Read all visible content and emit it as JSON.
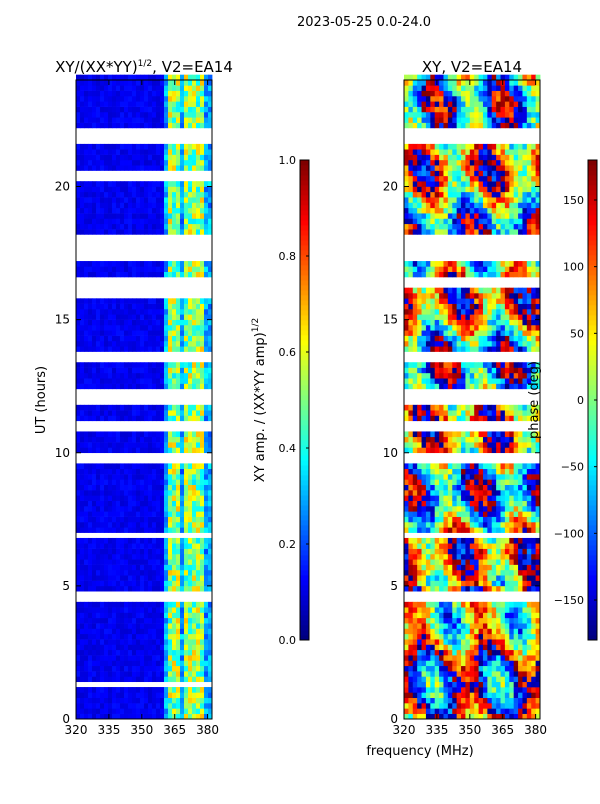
{
  "figure": {
    "suptitle": "2023-05-25 0.0-24.0",
    "xlabel": "frequency (MHz)"
  },
  "colors": {
    "jet": [
      "#00007f",
      "#0000ff",
      "#007fff",
      "#00ffff",
      "#7fff7f",
      "#ffff00",
      "#ff7f00",
      "#ff0000",
      "#7f0000"
    ],
    "gap": "#ffffff",
    "axis": "#000000"
  },
  "chart_data": [
    {
      "type": "heatmap",
      "title_main": "XY/(XX*YY)",
      "title_sup": "1/2",
      "title_tail": ", V2=EA14",
      "ylabel": "UT (hours)",
      "x_ticks": [
        "320",
        "335",
        "350",
        "365",
        "380"
      ],
      "x_tick_values": [
        320,
        335,
        350,
        365,
        380
      ],
      "xlim": [
        320,
        382
      ],
      "y_ticks": [
        "0",
        "5",
        "10",
        "15",
        "20"
      ],
      "y_tick_values": [
        0,
        5,
        10,
        15,
        20
      ],
      "ylim": [
        0,
        24
      ],
      "colorbar": {
        "label_main": "XY amp. / (XX*YY amp)",
        "label_sup": "1/2",
        "range": [
          0,
          1
        ],
        "ticks": [
          "0.0",
          "0.2",
          "0.4",
          "0.6",
          "0.8",
          "1.0"
        ],
        "tick_values": [
          0,
          0.2,
          0.4,
          0.6,
          0.8,
          1.0
        ]
      },
      "gaps_hours": [
        [
          21.6,
          22.0
        ],
        [
          17.2,
          18.1
        ],
        [
          16.3,
          16.5
        ],
        [
          11.9,
          12.2
        ],
        [
          9.7,
          9.9
        ],
        [
          4.6,
          4.8
        ],
        [
          1.3,
          1.4
        ],
        [
          20.3,
          20.4
        ],
        [
          15.9,
          16.0
        ],
        [
          13.5,
          13.7
        ],
        [
          6.9,
          7.0
        ],
        [
          10.9,
          11.0
        ]
      ],
      "band_freqs_mhz": [
        362,
        364,
        366,
        369,
        372,
        376
      ],
      "typical_amplitude": 0.08,
      "band_amplitude": 0.45
    },
    {
      "type": "heatmap",
      "title": "XY, V2=EA14",
      "x_ticks": [
        "320",
        "335",
        "350",
        "365",
        "380"
      ],
      "x_tick_values": [
        320,
        335,
        350,
        365,
        380
      ],
      "xlim": [
        320,
        382
      ],
      "y_ticks": [
        "0",
        "5",
        "10",
        "15",
        "20"
      ],
      "y_tick_values": [
        0,
        5,
        10,
        15,
        20
      ],
      "ylim": [
        0,
        24
      ],
      "colorbar": {
        "label": "phase (deg)",
        "range": [
          -180,
          180
        ],
        "ticks": [
          "−150",
          "−100",
          "−50",
          "0",
          "50",
          "100",
          "150"
        ],
        "tick_values": [
          -150,
          -100,
          -50,
          0,
          50,
          100,
          150
        ]
      },
      "gaps_hours": [
        [
          21.6,
          22.0
        ],
        [
          17.2,
          18.1
        ],
        [
          16.3,
          16.5
        ],
        [
          11.9,
          12.2
        ],
        [
          9.7,
          9.9
        ],
        [
          4.6,
          4.8
        ],
        [
          13.5,
          13.7
        ],
        [
          6.9,
          7.0
        ],
        [
          10.9,
          11.0
        ]
      ]
    }
  ]
}
